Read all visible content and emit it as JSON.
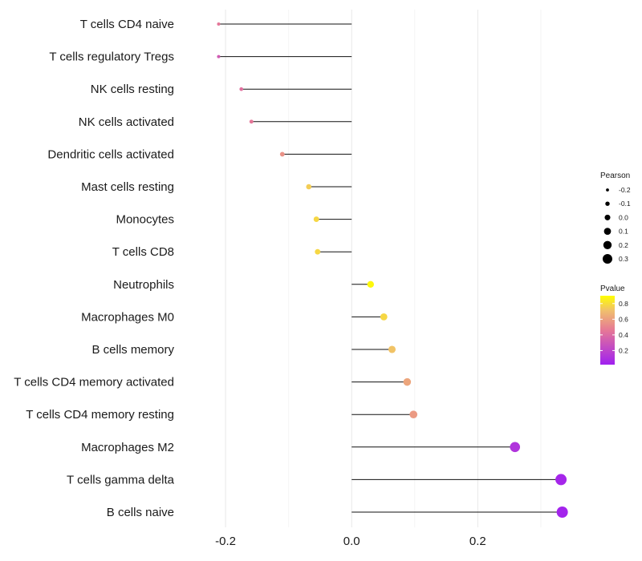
{
  "chart_data": {
    "type": "lollipop",
    "categories": [
      "T cells CD4 naive",
      "T cells regulatory  Tregs ",
      "NK cells resting",
      "NK cells activated",
      "Dendritic cells activated",
      "Mast cells resting",
      "Monocytes",
      "T cells CD8",
      "Neutrophils",
      "Macrophages M0",
      "B cells memory",
      "T cells CD4 memory activated",
      "T cells CD4 memory resting",
      "Macrophages M2",
      "T cells gamma delta",
      "B cells naive"
    ],
    "values": [
      -0.211,
      -0.211,
      -0.175,
      -0.159,
      -0.11,
      -0.068,
      -0.056,
      -0.054,
      0.03,
      0.051,
      0.064,
      0.088,
      0.098,
      0.259,
      0.332,
      0.334
    ],
    "pvalues": [
      0.45,
      0.32,
      0.42,
      0.45,
      0.55,
      0.75,
      0.78,
      0.78,
      0.88,
      0.78,
      0.72,
      0.62,
      0.58,
      0.12,
      0.05,
      0.04
    ],
    "xlim": [
      -0.265,
      0.365
    ],
    "xticks": [
      -0.2,
      0.0,
      0.2
    ],
    "xtick_labels": [
      "-0.2",
      "0.0",
      "0.2"
    ],
    "grid": true,
    "size_legend": {
      "title": "Pearson",
      "entries": [
        {
          "label": "-0.2",
          "value": -0.2
        },
        {
          "label": "-0.1",
          "value": -0.1
        },
        {
          "label": "0.0",
          "value": 0.0
        },
        {
          "label": "0.1",
          "value": 0.1
        },
        {
          "label": "0.2",
          "value": 0.2
        },
        {
          "label": "0.3",
          "value": 0.3
        }
      ]
    },
    "color_legend": {
      "title": "Pvalue",
      "ticks": [
        {
          "label": "0.8",
          "value": 0.8
        },
        {
          "label": "0.6",
          "value": 0.6
        },
        {
          "label": "0.4",
          "value": 0.4
        },
        {
          "label": "0.2",
          "value": 0.2
        }
      ],
      "range": [
        0.02,
        0.9
      ],
      "color_low": "#a020f0",
      "color_high": "#ffff00"
    },
    "legend_position": "right"
  }
}
